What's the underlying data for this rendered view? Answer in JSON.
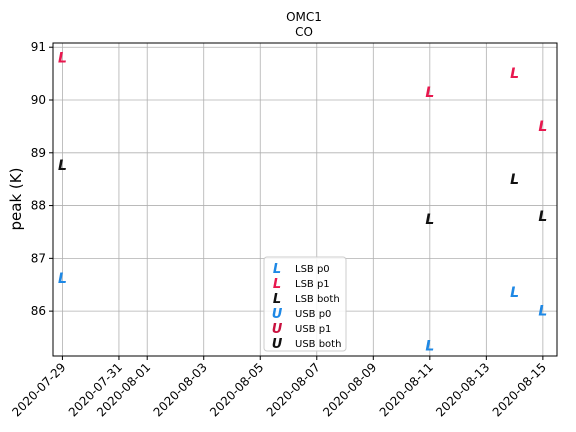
{
  "chart_data": {
    "type": "scatter",
    "title": "OMC1",
    "subtitle": "CO",
    "xlabel": "",
    "ylabel": "peak (K)",
    "x_ticks": [
      "2020-07-29",
      "2020-07-31",
      "2020-08-01",
      "2020-08-03",
      "2020-08-05",
      "2020-08-07",
      "2020-08-09",
      "2020-08-11",
      "2020-08-13",
      "2020-08-15"
    ],
    "y_ticks": [
      86,
      87,
      88,
      89,
      90,
      91
    ],
    "xlim": [
      "2020-07-28T16:00",
      "2020-08-15T12:00"
    ],
    "ylim": [
      85.15,
      91.08
    ],
    "grid": true,
    "legend_position": "lower-center",
    "series": [
      {
        "name": "LSB p0",
        "marker": "L",
        "color": "#1e88e5",
        "points": [
          {
            "x": "2020-07-29",
            "y": 86.63
          },
          {
            "x": "2020-08-11",
            "y": 85.35
          },
          {
            "x": "2020-08-14",
            "y": 86.36
          },
          {
            "x": "2020-08-15",
            "y": 86.01
          }
        ]
      },
      {
        "name": "LSB p1",
        "marker": "L",
        "color": "#e8174e",
        "points": [
          {
            "x": "2020-07-29",
            "y": 90.81
          },
          {
            "x": "2020-08-11",
            "y": 90.15
          },
          {
            "x": "2020-08-14",
            "y": 90.51
          },
          {
            "x": "2020-08-15",
            "y": 89.51
          }
        ]
      },
      {
        "name": "LSB both",
        "marker": "L",
        "color": "#111111",
        "points": [
          {
            "x": "2020-07-29",
            "y": 88.77
          },
          {
            "x": "2020-08-11",
            "y": 87.75
          },
          {
            "x": "2020-08-14",
            "y": 88.5
          },
          {
            "x": "2020-08-15",
            "y": 87.8
          }
        ]
      },
      {
        "name": "USB p0",
        "marker": "U",
        "color": "#1e88e5",
        "points": []
      },
      {
        "name": "USB p1",
        "marker": "U",
        "color": "#c8103e",
        "points": []
      },
      {
        "name": "USB both",
        "marker": "U",
        "color": "#111111",
        "points": []
      }
    ]
  }
}
